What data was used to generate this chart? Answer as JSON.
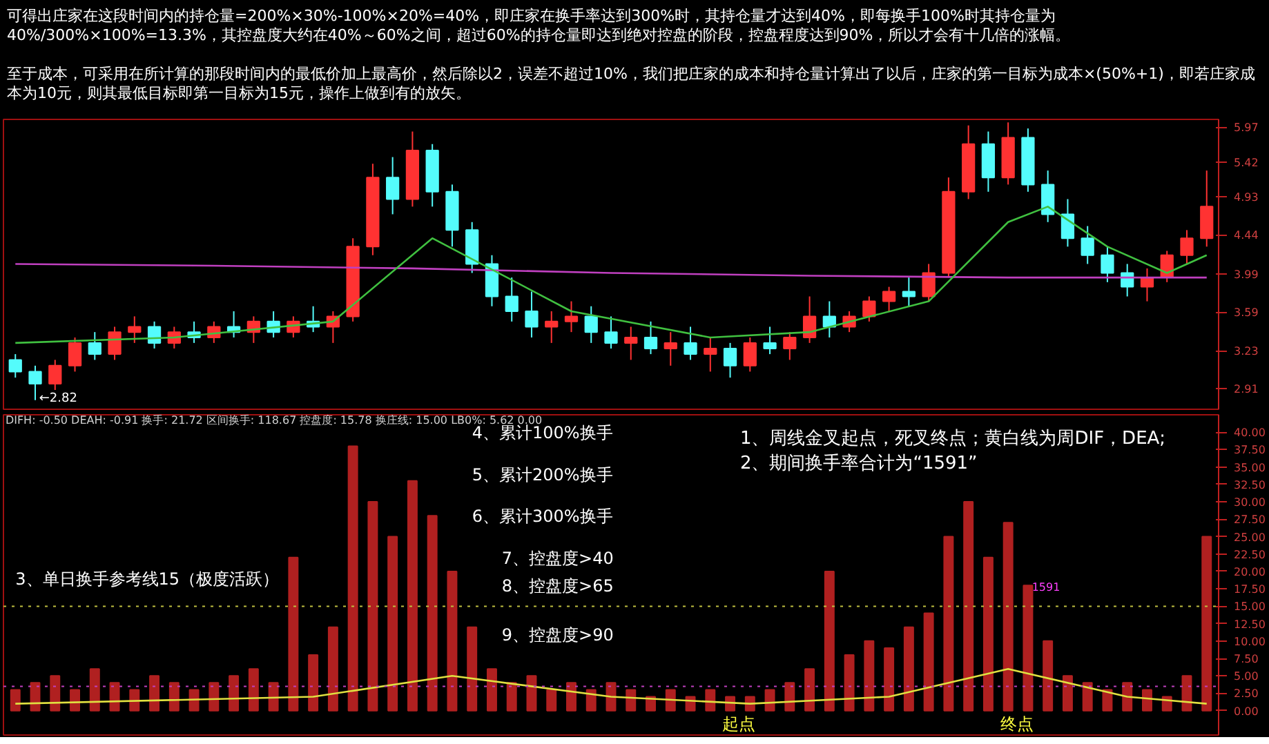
{
  "chart_data": [
    {
      "type": "candlestick",
      "title": "可得出庄家在这段时间内的持仓量=200%×30%-100%×20%=40%，即庄家在换手率达到300%时，其持仓量才达到40%，即每换手100%时其持仓量为40%/300%×100%=13.3%，其控盘度大约在40%～60%之间，超过60%的持仓量即达到绝对控盘的阶段，控盘程度达到90%，所以才会有十几倍的涨幅。",
      "subtitle": "至于成本，可采用在所计算的那段时间内的最低价加上最高价，然后除以2，误差不超过10%，我们把庄家的成本和持仓量计算出了以后，庄家的第一目标为成本×(50%+1)，即若庄家成本为10元，则其最低目标即第一目标为15元，操作上做到有的放矢。",
      "categories": [
        null,
        null,
        null,
        null,
        null,
        null,
        null,
        null,
        null,
        null,
        null,
        null,
        null,
        null,
        null,
        null,
        null,
        null,
        null,
        null,
        null,
        null,
        null,
        null,
        null,
        null,
        null,
        null,
        null,
        null,
        null,
        null,
        null,
        null,
        null,
        null,
        null,
        null,
        null,
        null,
        null,
        null,
        null,
        null,
        null,
        null,
        null,
        null,
        null,
        null,
        null,
        null,
        null,
        null,
        null,
        null,
        null,
        null,
        null,
        null,
        null
      ],
      "ohlc": [
        [
          3.15,
          3.2,
          3.0,
          3.05
        ],
        [
          3.05,
          3.1,
          2.82,
          2.95
        ],
        [
          2.95,
          3.15,
          2.9,
          3.1
        ],
        [
          3.1,
          3.35,
          3.05,
          3.3
        ],
        [
          3.3,
          3.4,
          3.15,
          3.2
        ],
        [
          3.2,
          3.45,
          3.15,
          3.4
        ],
        [
          3.4,
          3.55,
          3.3,
          3.45
        ],
        [
          3.45,
          3.5,
          3.25,
          3.3
        ],
        [
          3.3,
          3.45,
          3.25,
          3.4
        ],
        [
          3.4,
          3.5,
          3.3,
          3.35
        ],
        [
          3.35,
          3.5,
          3.3,
          3.45
        ],
        [
          3.45,
          3.6,
          3.35,
          3.4
        ],
        [
          3.4,
          3.55,
          3.3,
          3.5
        ],
        [
          3.5,
          3.6,
          3.35,
          3.4
        ],
        [
          3.4,
          3.55,
          3.35,
          3.5
        ],
        [
          3.5,
          3.65,
          3.4,
          3.45
        ],
        [
          3.45,
          3.6,
          3.3,
          3.55
        ],
        [
          3.55,
          4.4,
          3.5,
          4.3
        ],
        [
          4.3,
          5.4,
          4.2,
          5.2
        ],
        [
          5.2,
          5.5,
          4.7,
          4.9
        ],
        [
          4.9,
          5.9,
          4.8,
          5.6
        ],
        [
          5.6,
          5.7,
          4.8,
          5.0
        ],
        [
          5.0,
          5.1,
          4.3,
          4.5
        ],
        [
          4.5,
          4.6,
          4.0,
          4.1
        ],
        [
          4.1,
          4.2,
          3.65,
          3.75
        ],
        [
          3.75,
          3.95,
          3.5,
          3.6
        ],
        [
          3.6,
          3.8,
          3.35,
          3.45
        ],
        [
          3.45,
          3.6,
          3.3,
          3.5
        ],
        [
          3.5,
          3.7,
          3.4,
          3.55
        ],
        [
          3.55,
          3.65,
          3.3,
          3.4
        ],
        [
          3.4,
          3.55,
          3.25,
          3.3
        ],
        [
          3.3,
          3.45,
          3.15,
          3.35
        ],
        [
          3.35,
          3.5,
          3.2,
          3.25
        ],
        [
          3.25,
          3.4,
          3.1,
          3.3
        ],
        [
          3.3,
          3.45,
          3.15,
          3.2
        ],
        [
          3.2,
          3.35,
          3.05,
          3.25
        ],
        [
          3.25,
          3.3,
          3.0,
          3.1
        ],
        [
          3.1,
          3.35,
          3.05,
          3.3
        ],
        [
          3.3,
          3.45,
          3.2,
          3.25
        ],
        [
          3.25,
          3.4,
          3.15,
          3.35
        ],
        [
          3.35,
          3.75,
          3.3,
          3.55
        ],
        [
          3.55,
          3.7,
          3.35,
          3.45
        ],
        [
          3.45,
          3.6,
          3.4,
          3.55
        ],
        [
          3.55,
          3.75,
          3.5,
          3.7
        ],
        [
          3.7,
          3.85,
          3.6,
          3.8
        ],
        [
          3.8,
          3.95,
          3.65,
          3.75
        ],
        [
          3.75,
          4.1,
          3.7,
          4.0
        ],
        [
          4.0,
          5.2,
          3.95,
          5.0
        ],
        [
          5.0,
          6.0,
          4.9,
          5.7
        ],
        [
          5.7,
          5.9,
          5.0,
          5.2
        ],
        [
          5.2,
          6.05,
          5.1,
          5.8
        ],
        [
          5.8,
          5.95,
          5.0,
          5.1
        ],
        [
          5.1,
          5.3,
          4.6,
          4.7
        ],
        [
          4.7,
          4.9,
          4.3,
          4.4
        ],
        [
          4.4,
          4.55,
          4.1,
          4.2
        ],
        [
          4.2,
          4.3,
          3.9,
          4.0
        ],
        [
          4.0,
          4.1,
          3.75,
          3.85
        ],
        [
          3.85,
          4.05,
          3.7,
          3.95
        ],
        [
          3.95,
          4.25,
          3.9,
          4.2
        ],
        [
          4.2,
          4.5,
          4.1,
          4.4
        ],
        [
          4.4,
          5.3,
          4.3,
          4.8
        ]
      ],
      "colors": [
        "#54fcfc",
        "#54fcfc",
        "#ff3232",
        "#ff3232",
        "#54fcfc",
        "#ff3232",
        "#ff3232",
        "#54fcfc",
        "#ff3232",
        "#54fcfc",
        "#ff3232",
        "#54fcfc",
        "#ff3232",
        "#54fcfc",
        "#ff3232",
        "#54fcfc",
        "#ff3232",
        "#ff3232",
        "#ff3232",
        "#54fcfc",
        "#ff3232",
        "#54fcfc",
        "#54fcfc",
        "#54fcfc",
        "#54fcfc",
        "#54fcfc",
        "#54fcfc",
        "#ff3232",
        "#ff3232",
        "#54fcfc",
        "#54fcfc",
        "#ff3232",
        "#54fcfc",
        "#ff3232",
        "#54fcfc",
        "#ff3232",
        "#54fcfc",
        "#ff3232",
        "#54fcfc",
        "#ff3232",
        "#ff3232",
        "#54fcfc",
        "#ff3232",
        "#ff3232",
        "#ff3232",
        "#54fcfc",
        "#ff3232",
        "#ff3232",
        "#ff3232",
        "#54fcfc",
        "#ff3232",
        "#54fcfc",
        "#54fcfc",
        "#54fcfc",
        "#54fcfc",
        "#54fcfc",
        "#54fcfc",
        "#ff3232",
        "#ff3232",
        "#ff3232",
        "#ff3232"
      ],
      "series": [
        {
          "type": "line",
          "color": "#c040c0",
          "values": [
            4.1,
            null,
            null,
            null,
            null,
            null,
            null,
            null,
            null,
            null,
            4.08,
            null,
            null,
            null,
            null,
            null,
            null,
            null,
            null,
            null,
            4.05,
            null,
            null,
            null,
            null,
            null,
            null,
            null,
            null,
            null,
            4.0,
            null,
            null,
            null,
            null,
            null,
            null,
            null,
            null,
            null,
            3.97,
            null,
            null,
            null,
            null,
            null,
            null,
            null,
            null,
            null,
            3.95,
            null,
            null,
            null,
            null,
            null,
            null,
            null,
            null,
            null,
            3.95
          ]
        },
        {
          "type": "line",
          "color": "#40c040",
          "values": [
            3.3,
            null,
            null,
            null,
            null,
            null,
            null,
            null,
            3.35,
            null,
            null,
            null,
            null,
            null,
            null,
            null,
            3.5,
            null,
            null,
            null,
            null,
            4.4,
            null,
            null,
            null,
            null,
            null,
            null,
            3.6,
            null,
            null,
            null,
            null,
            null,
            null,
            3.35,
            null,
            null,
            null,
            null,
            3.4,
            null,
            null,
            null,
            null,
            null,
            3.7,
            null,
            null,
            null,
            4.6,
            null,
            4.8,
            null,
            null,
            4.3,
            null,
            null,
            4.0,
            null,
            4.2
          ]
        }
      ],
      "ylim": [
        2.75,
        6.1
      ],
      "yticks": [
        2.91,
        3.23,
        3.59,
        3.99,
        4.44,
        4.93,
        5.42,
        5.97
      ],
      "log": true,
      "grid": false,
      "annotations": [
        "←2.82"
      ]
    },
    {
      "type": "bar",
      "categories": [
        null,
        null,
        null,
        null,
        null,
        null,
        null,
        null,
        null,
        null,
        null,
        null,
        null,
        null,
        null,
        null,
        null,
        null,
        null,
        null,
        null,
        null,
        null,
        null,
        null,
        null,
        null,
        null,
        null,
        null,
        null,
        null,
        null,
        null,
        null,
        null,
        null,
        null,
        null,
        null,
        null,
        null,
        null,
        null,
        null,
        null,
        null,
        null,
        null,
        null,
        null,
        null,
        null,
        null,
        null,
        null,
        null,
        null,
        null,
        null,
        null
      ],
      "values": [
        3,
        4,
        5,
        3,
        6,
        4,
        3,
        5,
        4,
        3,
        4,
        5,
        6,
        4,
        22,
        8,
        12,
        38,
        30,
        25,
        33,
        28,
        20,
        12,
        6,
        4,
        5,
        3,
        4,
        3,
        4,
        3,
        2,
        3,
        2,
        3,
        2,
        2,
        3,
        4,
        6,
        20,
        8,
        10,
        9,
        12,
        14,
        25,
        30,
        22,
        27,
        18,
        10,
        5,
        4,
        3,
        4,
        3,
        2,
        5,
        25
      ],
      "color": "#b02020",
      "series": [
        {
          "type": "line",
          "color": "#e0e040",
          "values": [
            1,
            null,
            null,
            null,
            null,
            null,
            null,
            null,
            null,
            null,
            null,
            null,
            null,
            null,
            null,
            2,
            null,
            null,
            null,
            null,
            null,
            null,
            5,
            null,
            null,
            null,
            null,
            null,
            null,
            null,
            2,
            null,
            null,
            null,
            null,
            null,
            null,
            1,
            null,
            null,
            null,
            null,
            null,
            null,
            2,
            null,
            null,
            null,
            null,
            null,
            6,
            null,
            null,
            null,
            null,
            null,
            2,
            null,
            null,
            null,
            1
          ]
        }
      ],
      "ylim": [
        -3.5,
        42.5
      ],
      "yticks": [
        {
          "value": 0,
          "label": "0.00"
        },
        {
          "value": 2.5,
          "label": "2.50"
        },
        {
          "value": 5,
          "label": "5.00"
        },
        {
          "value": 7.5,
          "label": "7.50"
        },
        {
          "value": 10,
          "label": "10.00"
        },
        {
          "value": 12.5,
          "label": "12.50"
        },
        {
          "value": 15,
          "label": "15.00"
        },
        {
          "value": 17.5,
          "label": "17.50"
        },
        {
          "value": 20,
          "label": "20.00"
        },
        {
          "value": 22.5,
          "label": "22.50"
        },
        {
          "value": 25,
          "label": "25.00"
        },
        {
          "value": 27.5,
          "label": "27.50"
        },
        {
          "value": 30,
          "label": "30.00"
        },
        {
          "value": 32.5,
          "label": "32.50"
        },
        {
          "value": 35,
          "label": "35.00"
        },
        {
          "value": 37.5,
          "label": "37.50"
        },
        {
          "value": 40,
          "label": "40.00"
        }
      ],
      "ref_lines": [
        {
          "axis": "y",
          "value": 15,
          "label": "3、单日换手参考线15（极度活跃）",
          "color": "#c0c040",
          "line_style": "dotted"
        },
        {
          "axis": "y",
          "value": 3.5,
          "label": null,
          "color": "#c040c0",
          "line_style": "dotted"
        }
      ],
      "grid": false,
      "annotations": [
        "DIFH: -0.50 DEAH: -0.91 换手: 21.72 区间换手: 118.67 控盘度: 15.78 换庄线: 15.00 LB0%: 5.62 0.00",
        "1、周线金叉起点，死叉终点；黄白线为周DIF，DEA;",
        "2、期间换手率合计为“1591”",
        "4、累计100%换手",
        "5、累计200%换手",
        "6、累计300%换手",
        "7、控盘度>40",
        "8、控盘度>65",
        "9、控盘度>90",
        "起点",
        "终点",
        "1591"
      ]
    }
  ]
}
